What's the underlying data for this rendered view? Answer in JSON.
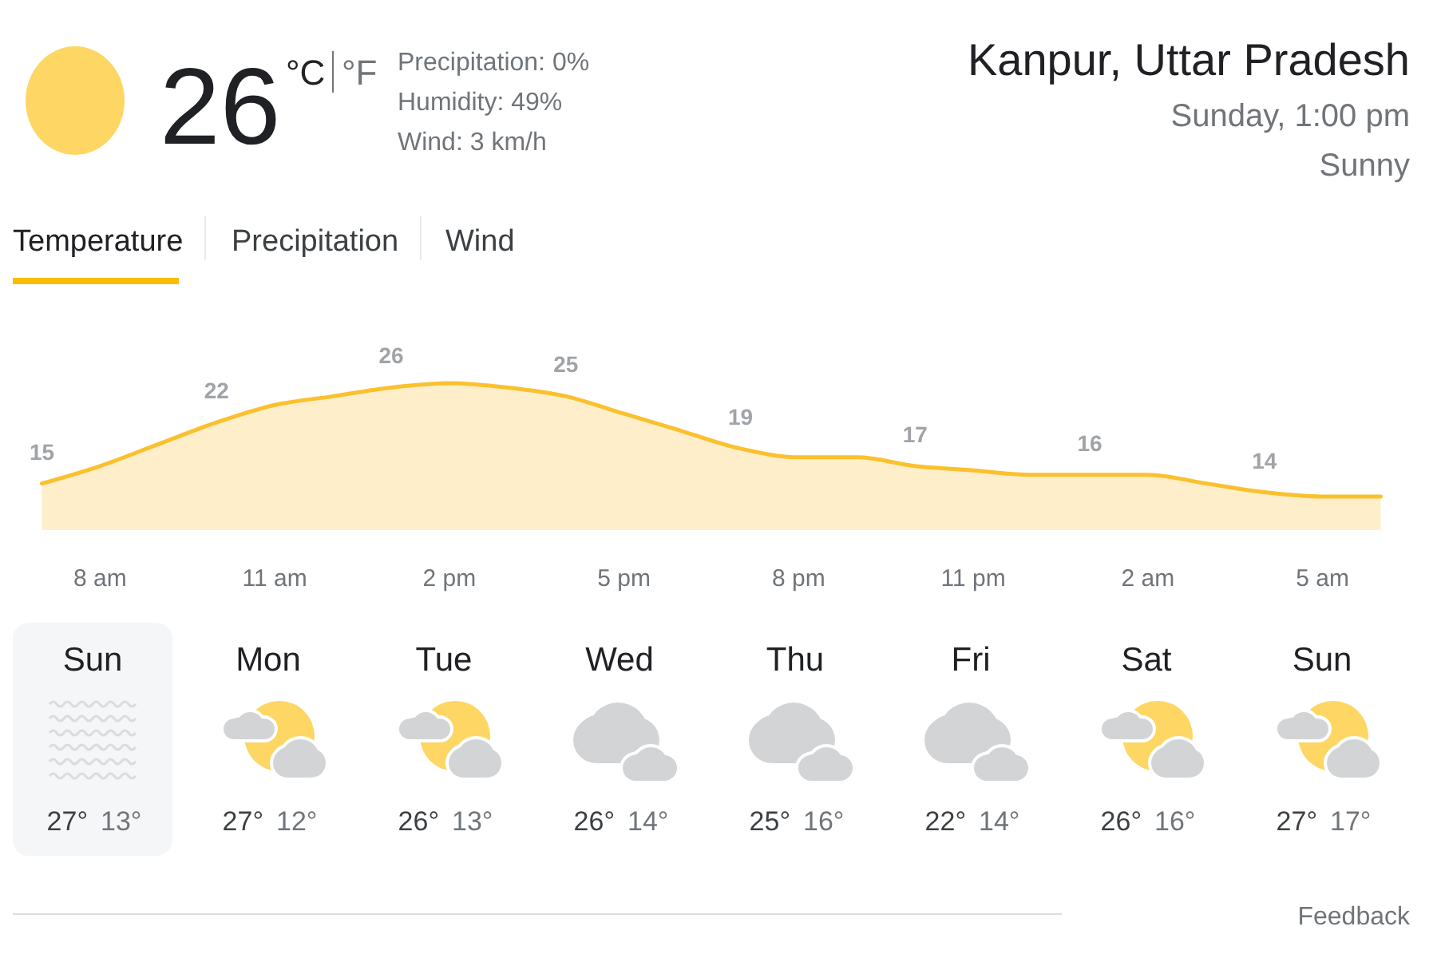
{
  "chart_data": [
    {
      "type": "other",
      "annotations": [
        "26",
        "°C",
        "°F",
        "Precipitation: 0%",
        "Humidity: 49%",
        "Wind: 3 km/h",
        "Kanpur, Uttar Pradesh",
        "Sunday, 1:00 pm",
        "Sunny",
        "Temperature",
        "Precipitation",
        "Wind"
      ]
    },
    {
      "type": "area",
      "categories": [
        null,
        "8 am",
        null,
        null,
        "11 am",
        null,
        null,
        "2 pm",
        null,
        null,
        "5 pm",
        null,
        null,
        "8 pm",
        null,
        null,
        "11 pm",
        null,
        null,
        "2 am",
        null,
        null,
        "5 am",
        null
      ],
      "values": [
        15,
        17,
        19.5,
        22,
        24,
        25,
        26,
        26.5,
        26,
        25,
        23,
        21,
        19,
        18,
        18,
        17,
        16.5,
        16,
        16,
        16,
        15,
        14,
        13.5,
        13.5
      ],
      "value_labels": [
        "15",
        null,
        null,
        "22",
        null,
        null,
        "26",
        null,
        null,
        "25",
        null,
        null,
        "19",
        null,
        null,
        "17",
        null,
        null,
        "16",
        null,
        null,
        "14",
        null,
        null
      ],
      "color": "#fbc02d",
      "tick_labels": "x"
    },
    {
      "type": "other",
      "annotations": [
        "Sun",
        "27°",
        "13°",
        "Mon",
        "27°",
        "12°",
        "Tue",
        "26°",
        "13°",
        "Wed",
        "26°",
        "14°",
        "Thu",
        "25°",
        "16°",
        "Fri",
        "22°",
        "14°",
        "Sat",
        "26°",
        "16°",
        "Sun",
        "27°",
        "17°",
        "Feedback"
      ]
    }
  ]
}
